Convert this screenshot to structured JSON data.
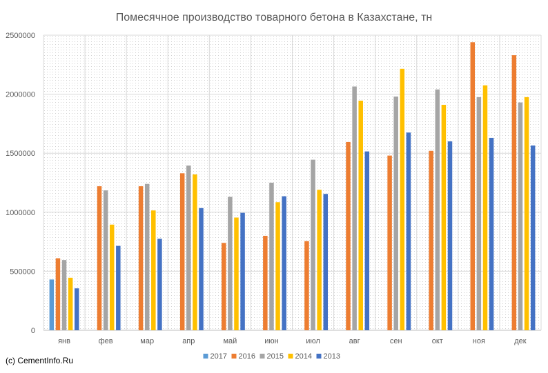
{
  "chart_data": {
    "type": "bar",
    "title": "Помесячное производство товарного бетона в Казахстане, тн",
    "xlabel": "",
    "ylabel": "",
    "ylim": [
      0,
      2500000
    ],
    "yticks": [
      0,
      500000,
      1000000,
      1500000,
      2000000,
      2500000
    ],
    "ytick_labels": [
      "0",
      "500000",
      "1000000",
      "1500000",
      "2000000",
      "2500000"
    ],
    "grid": true,
    "legend_position": "bottom",
    "categories": [
      "янв",
      "фев",
      "мар",
      "апр",
      "май",
      "июн",
      "июл",
      "авг",
      "сен",
      "окт",
      "ноя",
      "дек"
    ],
    "series": [
      {
        "name": "2017",
        "color": "#5B9BD5",
        "values": [
          430000,
          null,
          null,
          null,
          null,
          null,
          null,
          null,
          null,
          null,
          null,
          null
        ]
      },
      {
        "name": "2016",
        "color": "#ED7D31",
        "values": [
          610000,
          1220000,
          1220000,
          1330000,
          740000,
          800000,
          755000,
          1595000,
          1480000,
          1520000,
          2440000,
          2330000
        ]
      },
      {
        "name": "2015",
        "color": "#A5A5A5",
        "values": [
          595000,
          1185000,
          1240000,
          1395000,
          1130000,
          1250000,
          1445000,
          2065000,
          1980000,
          2040000,
          1975000,
          1930000
        ]
      },
      {
        "name": "2014",
        "color": "#FFC000",
        "values": [
          445000,
          895000,
          1015000,
          1320000,
          955000,
          1085000,
          1190000,
          1945000,
          2215000,
          1910000,
          2075000,
          1975000
        ]
      },
      {
        "name": "2013",
        "color": "#4472C4",
        "values": [
          355000,
          715000,
          775000,
          1035000,
          995000,
          1135000,
          1155000,
          1515000,
          1675000,
          1600000,
          1630000,
          1565000
        ]
      }
    ]
  },
  "footer": {
    "credit": "(c) CementInfo.Ru"
  }
}
